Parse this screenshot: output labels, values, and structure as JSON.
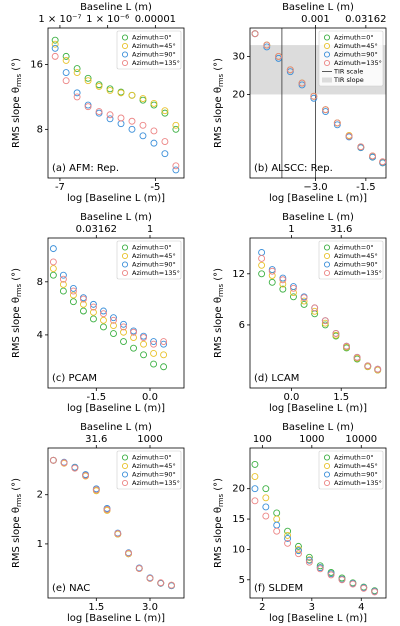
{
  "chart_data": [
    {
      "type": "scatter",
      "x2label": "Baseline L (m)",
      "xlabel": "log [Baseline L (m)]",
      "ylabel": {
        "main": "RMS slope θ",
        "sub": "rms",
        "unit": "(°)"
      },
      "annotation": "(a) AFM: Rep.",
      "xlim": [
        -7.25,
        -4.4
      ],
      "ylim": [
        2,
        20.5
      ],
      "xticks": [
        -7,
        -5
      ],
      "yticks": [
        8,
        16
      ],
      "x2scale": "log",
      "x2ticks": [
        {
          "value": 1e-07,
          "label": "1 × 10⁻⁷"
        },
        {
          "value": 1e-06,
          "label": "1 × 10⁻⁶"
        },
        1e-05
      ],
      "x": [
        -7.1,
        -6.87,
        -6.64,
        -6.41,
        -6.18,
        -5.95,
        -5.72,
        -5.49,
        -5.26,
        -5.03,
        -4.8,
        -4.57
      ],
      "series": [
        {
          "name": "Azimuth=0°",
          "color": "#3cb043",
          "values": [
            19,
            17,
            15.5,
            14.3,
            13.5,
            13,
            12.6,
            12.2,
            11.6,
            11,
            10,
            8
          ]
        },
        {
          "name": "Azimuth=45°",
          "color": "#e8c22c",
          "values": [
            18.5,
            16.5,
            15,
            14,
            13.3,
            12.8,
            12.5,
            12.2,
            11.8,
            11.2,
            10.3,
            8.5
          ]
        },
        {
          "name": "Azimuth=90°",
          "color": "#3b8fd9",
          "values": [
            18,
            15,
            12.5,
            11,
            10,
            9.3,
            8.7,
            8,
            7.2,
            6.3,
            5,
            3
          ]
        },
        {
          "name": "Azimuth=135°",
          "color": "#ec8585",
          "values": [
            17,
            14,
            12,
            10.8,
            10.2,
            9.8,
            9.4,
            9,
            8.5,
            7.8,
            6.5,
            3.5
          ]
        }
      ]
    },
    {
      "type": "scatter",
      "x2label": "Baseline L (m)",
      "xlabel": "log [Baseline L (m)]",
      "ylabel": {
        "main": "RMS slope θ",
        "sub": "rms",
        "unit": "(°)"
      },
      "annotation": "(b) ALSCC: Rep.",
      "xlim": [
        -4.95,
        -0.9
      ],
      "ylim": [
        -2,
        37.5
      ],
      "xticks": [
        {
          "value": -3,
          "label": "−3.0"
        },
        -1.5
      ],
      "yticks": [
        20,
        30
      ],
      "x2scale": "log",
      "x2ticks": [
        0.001,
        0.03162
      ],
      "x": [
        -4.8,
        -4.45,
        -4.1,
        -3.75,
        -3.4,
        -3.05,
        -2.7,
        -2.35,
        -2.0,
        -1.65,
        -1.3,
        -1.0
      ],
      "series": [
        {
          "name": "Azimuth=0°",
          "color": "#3cb043",
          "values": [
            36,
            33,
            30,
            26.5,
            23,
            19.5,
            16,
            12.5,
            9,
            6,
            3.5,
            2
          ]
        },
        {
          "name": "Azimuth=45°",
          "color": "#e8c22c",
          "values": [
            36,
            33,
            30,
            26.5,
            23,
            19.5,
            16,
            12.5,
            9.2,
            6.2,
            3.8,
            2.2
          ]
        },
        {
          "name": "Azimuth=90°",
          "color": "#3b8fd9",
          "values": [
            36,
            32.5,
            29.5,
            26,
            22.5,
            19,
            15.5,
            12,
            8.8,
            6,
            3.5,
            2
          ]
        },
        {
          "name": "Azimuth=135°",
          "color": "#ec8585",
          "values": [
            36,
            33,
            30,
            26.5,
            23,
            19.5,
            16,
            12.5,
            9,
            6.2,
            3.8,
            2.3
          ]
        }
      ],
      "lines": {
        "name": "TIR scale",
        "color": "#333333",
        "x": [
          -4.0,
          -3.0
        ]
      },
      "band": {
        "name": "TIR slope",
        "color": "#dcdcdc",
        "y": [
          20,
          33
        ]
      }
    },
    {
      "type": "scatter",
      "x2label": "Baseline L (m)",
      "xlabel": "log [Baseline L (m)]",
      "ylabel": {
        "main": "RMS slope θ",
        "sub": "rms",
        "unit": "(°)"
      },
      "annotation": "(c) PCAM",
      "xlim": [
        -2.85,
        0.95
      ],
      "ylim": [
        0,
        11.3
      ],
      "xticks": [
        -1.5,
        {
          "value": 0,
          "label": "0.0"
        }
      ],
      "yticks": [
        4,
        8
      ],
      "x2scale": "log",
      "x2ticks": [
        0.03162,
        1
      ],
      "x": [
        -2.7,
        -2.42,
        -2.14,
        -1.86,
        -1.58,
        -1.3,
        -1.02,
        -0.74,
        -0.46,
        -0.18,
        0.1,
        0.38
      ],
      "series": [
        {
          "name": "Azimuth=0°",
          "color": "#3cb043",
          "values": [
            8.5,
            7.3,
            6.5,
            5.8,
            5.2,
            4.6,
            4.1,
            3.5,
            3.0,
            2.5,
            1.8,
            1.6
          ]
        },
        {
          "name": "Azimuth=45°",
          "color": "#e8c22c",
          "values": [
            9,
            7.8,
            7,
            6.3,
            5.7,
            5.1,
            4.7,
            4.2,
            3.8,
            3.3,
            2.6,
            2.5
          ]
        },
        {
          "name": "Azimuth=90°",
          "color": "#3b8fd9",
          "values": [
            10.5,
            8.5,
            7.5,
            6.8,
            6.3,
            5.8,
            5.3,
            4.8,
            4.3,
            3.9,
            3.5,
            3.3
          ]
        },
        {
          "name": "Azimuth=135°",
          "color": "#ec8585",
          "values": [
            9.5,
            8.2,
            7.3,
            6.7,
            6.1,
            5.6,
            5.1,
            4.6,
            4.2,
            3.8,
            3.3,
            3.5
          ]
        }
      ]
    },
    {
      "type": "scatter",
      "x2label": "Baseline L (m)",
      "xlabel": "log [Baseline L (m)]",
      "ylabel": {
        "main": "RMS slope θ",
        "sub": "rms",
        "unit": "(°)"
      },
      "annotation": "(d) LCAM",
      "xlim": [
        -1.25,
        2.85
      ],
      "ylim": [
        -1.4,
        16.2
      ],
      "xticks": [
        {
          "value": 0,
          "label": "0.0"
        },
        1.5
      ],
      "yticks": [
        6,
        12
      ],
      "x2scale": "log",
      "x2ticks": [
        1,
        31.6
      ],
      "x": [
        -0.9,
        -0.58,
        -0.26,
        0.06,
        0.38,
        0.7,
        1.02,
        1.34,
        1.66,
        1.98,
        2.3,
        2.6
      ],
      "series": [
        {
          "name": "Azimuth=0°",
          "color": "#3cb043",
          "values": [
            12,
            11,
            10.2,
            9.3,
            8.4,
            7.3,
            6,
            4.7,
            3.3,
            2,
            1.1,
            0.7
          ]
        },
        {
          "name": "Azimuth=45°",
          "color": "#e8c22c",
          "values": [
            13,
            11.8,
            10.8,
            9.8,
            8.8,
            7.6,
            6.2,
            4.8,
            3.4,
            2.1,
            1.1,
            0.7
          ]
        },
        {
          "name": "Azimuth=90°",
          "color": "#3b8fd9",
          "values": [
            14.5,
            12.5,
            11.5,
            10.5,
            9.3,
            8,
            6.5,
            5,
            3.5,
            2.2,
            1.2,
            0.8
          ]
        },
        {
          "name": "Azimuth=135°",
          "color": "#ec8585",
          "values": [
            13.8,
            12.3,
            11.3,
            10.3,
            9.2,
            8,
            6.5,
            5,
            3.5,
            2.2,
            1.2,
            0.8
          ]
        }
      ]
    },
    {
      "type": "scatter",
      "x2label": "Baseline L (m)",
      "xlabel": "log [Baseline L (m)]",
      "ylabel": {
        "main": "RMS slope θ",
        "sub": "rms",
        "unit": "(°)"
      },
      "annotation": "(e) NAC",
      "xlim": [
        0.15,
        3.95
      ],
      "ylim": [
        -0.1,
        2.95
      ],
      "xticks": [
        1.5,
        {
          "value": 3,
          "label": "3.0"
        }
      ],
      "yticks": [
        1,
        2
      ],
      "x2scale": "log",
      "x2ticks": [
        31.6,
        1000
      ],
      "x": [
        0.3,
        0.6,
        0.9,
        1.2,
        1.5,
        1.8,
        2.1,
        2.4,
        2.7,
        3.0,
        3.3,
        3.6
      ],
      "series": [
        {
          "name": "Azimuth=0°",
          "color": "#3cb043",
          "values": [
            2.7,
            2.65,
            2.55,
            2.4,
            2.1,
            1.7,
            1.2,
            0.8,
            0.5,
            0.3,
            0.2,
            0.15
          ]
        },
        {
          "name": "Azimuth=45°",
          "color": "#e8c22c",
          "values": [
            2.7,
            2.64,
            2.55,
            2.38,
            2.08,
            1.68,
            1.2,
            0.8,
            0.5,
            0.3,
            0.2,
            0.16
          ]
        },
        {
          "name": "Azimuth=90°",
          "color": "#3b8fd9",
          "values": [
            2.7,
            2.66,
            2.56,
            2.41,
            2.12,
            1.72,
            1.22,
            0.82,
            0.51,
            0.31,
            0.2,
            0.15
          ]
        },
        {
          "name": "Azimuth=135°",
          "color": "#ec8585",
          "values": [
            2.7,
            2.65,
            2.54,
            2.39,
            2.1,
            1.7,
            1.21,
            0.81,
            0.5,
            0.3,
            0.21,
            0.16
          ]
        }
      ]
    },
    {
      "type": "scatter",
      "x2label": "Baseline L (m)",
      "xlabel": "log [Baseline L (m)]",
      "ylabel": {
        "main": "RMS slope θ",
        "sub": "rms",
        "unit": "(°)"
      },
      "annotation": "(f) SLDEM",
      "xlim": [
        1.75,
        4.5
      ],
      "ylim": [
        2,
        26.7
      ],
      "xticks": [
        2,
        3,
        4
      ],
      "yticks": [
        5,
        10,
        15,
        20
      ],
      "x2scale": "log",
      "x2ticks": [
        100,
        1000,
        10000
      ],
      "x": [
        1.85,
        2.07,
        2.29,
        2.51,
        2.73,
        2.95,
        3.17,
        3.39,
        3.61,
        3.83,
        4.05,
        4.27
      ],
      "series": [
        {
          "name": "Azimuth=0°",
          "color": "#3cb043",
          "values": [
            24,
            20,
            16,
            13,
            10.5,
            8.7,
            7.3,
            6.2,
            5.3,
            4.5,
            3.8,
            3.2
          ]
        },
        {
          "name": "Azimuth=45°",
          "color": "#e8c22c",
          "values": [
            22,
            18.5,
            15,
            12.3,
            10,
            8.3,
            7,
            6,
            5.1,
            4.4,
            3.7,
            3.1
          ]
        },
        {
          "name": "Azimuth=90°",
          "color": "#3b8fd9",
          "values": [
            20,
            17,
            14,
            11.8,
            9.8,
            8.2,
            7,
            6,
            5.1,
            4.4,
            3.7,
            3.1
          ]
        },
        {
          "name": "Azimuth=135°",
          "color": "#ec8585",
          "values": [
            18,
            15.5,
            13,
            11,
            9.3,
            7.9,
            6.8,
            5.8,
            5,
            4.3,
            3.6,
            3
          ]
        }
      ]
    }
  ]
}
